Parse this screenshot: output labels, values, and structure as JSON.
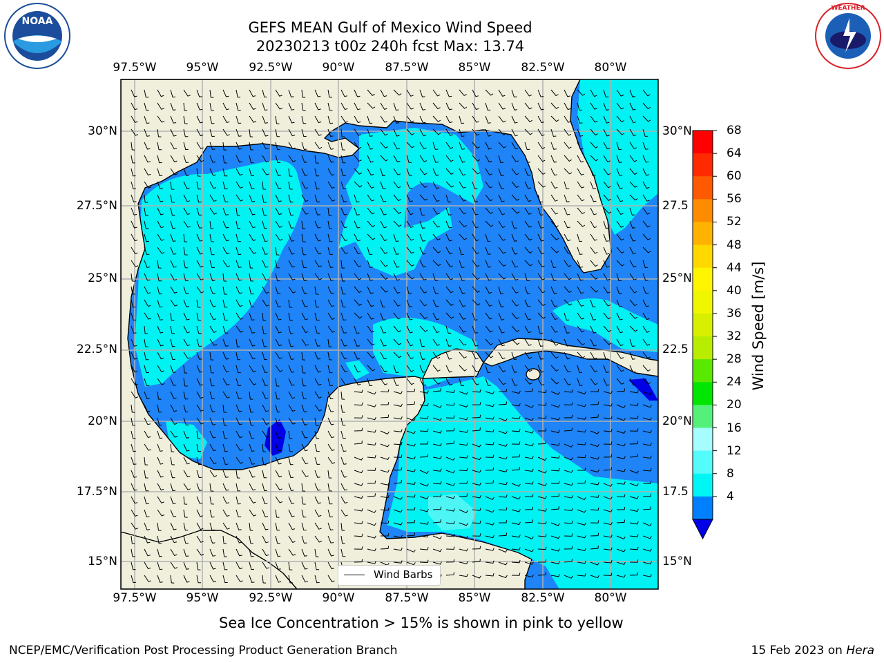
{
  "header": {
    "title_line1": "GEFS MEAN Gulf of Mexico Wind Speed",
    "title_line2": "20230213 t00z 240h fcst   Max: 13.74"
  },
  "axes": {
    "lon_labels": [
      "97.5°W",
      "95°W",
      "92.5°W",
      "90°W",
      "87.5°W",
      "85°W",
      "82.5°W",
      "80°W"
    ],
    "lat_labels_left": [
      "30°N",
      "27.5°N",
      "25°N",
      "22.5°N",
      "20°N",
      "17.5°N",
      "15°N"
    ],
    "lat_labels_right": [
      "30°N",
      "27.5",
      "25°N",
      "22.5",
      "20°N",
      "17.5",
      "15°N"
    ]
  },
  "colorbar": {
    "label": "Wind Speed [m/s]",
    "ticks": [
      "68",
      "64",
      "60",
      "56",
      "52",
      "48",
      "44",
      "40",
      "36",
      "32",
      "28",
      "24",
      "20",
      "16",
      "12",
      "8",
      "4"
    ],
    "colors": [
      "#ff0000",
      "#ff2a00",
      "#ff5a00",
      "#ff8c00",
      "#ffb300",
      "#ffd800",
      "#fff500",
      "#f0f500",
      "#d8ef00",
      "#b8ec00",
      "#59e800",
      "#00e600",
      "#55f07a",
      "#a6fdfd",
      "#54fbfb",
      "#00f5f5",
      "#0080ff"
    ],
    "under_color": "#0000e8"
  },
  "map": {
    "land_color": "#efefdc",
    "ocean_colors": {
      "4-8": "#1e84f7",
      "8-12": "#00f2f2",
      "12-16": "#4ef5f5",
      "under-4": "#0000e6"
    },
    "legend_label": "Wind Barbs"
  },
  "footer": {
    "note": "Sea Ice Concentration > 15% is shown in pink to yellow",
    "credit": "NCEP/EMC/Verification Post Processing Product Generation Branch",
    "date": "15 Feb 2023 on",
    "machine": "Hera"
  },
  "logos": {
    "left": "NOAA",
    "right": "NATIONAL WEATHER SERVICE"
  }
}
